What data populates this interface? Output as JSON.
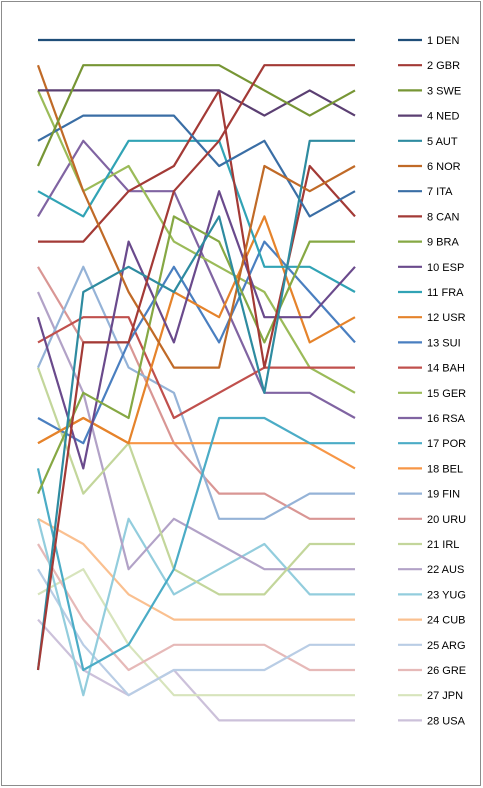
{
  "chart_data": {
    "type": "line",
    "title": "",
    "xlabel": "",
    "ylabel": "",
    "x": [
      1,
      2,
      3,
      4,
      5,
      6,
      7,
      8
    ],
    "ylim": [
      1,
      28
    ],
    "y_inverted": true,
    "grid": false,
    "legend_position": "right",
    "series": [
      {
        "name": "1 DEN",
        "color": "#1f4e79",
        "values": [
          1,
          1,
          1,
          1,
          1,
          1,
          1,
          1
        ]
      },
      {
        "name": "2 GBR",
        "color": "#a33a36",
        "values": [
          26,
          13,
          13,
          7,
          5,
          2,
          2,
          2
        ]
      },
      {
        "name": "3 SWE",
        "color": "#779635",
        "values": [
          6,
          2,
          2,
          2,
          2,
          3,
          4,
          3
        ]
      },
      {
        "name": "4 NED",
        "color": "#5b3f72",
        "values": [
          3,
          3,
          3,
          3,
          3,
          4,
          3,
          4
        ]
      },
      {
        "name": "5 AUT",
        "color": "#2e8ba0",
        "values": [
          26,
          11,
          10,
          11,
          8,
          15,
          5,
          5
        ]
      },
      {
        "name": "6 NOR",
        "color": "#c06a27",
        "values": [
          2,
          7,
          11,
          14,
          14,
          6,
          7,
          6
        ]
      },
      {
        "name": "7 ITA",
        "color": "#3a6ea5",
        "values": [
          5,
          4,
          4,
          4,
          6,
          5,
          8,
          7
        ]
      },
      {
        "name": "8 CAN",
        "color": "#a33a36",
        "values": [
          9,
          9,
          7,
          6,
          3,
          14,
          6,
          8
        ]
      },
      {
        "name": "9 BRA",
        "color": "#86a844",
        "values": [
          19,
          15,
          16,
          8,
          9,
          13,
          9,
          9
        ]
      },
      {
        "name": "10 ESP",
        "color": "#6a4a8c",
        "values": [
          12,
          18,
          9,
          13,
          7,
          12,
          12,
          10
        ]
      },
      {
        "name": "11 FRA",
        "color": "#31a3b5",
        "values": [
          7,
          8,
          5,
          5,
          5,
          10,
          10,
          11
        ]
      },
      {
        "name": "12 USR",
        "color": "#e5832b",
        "values": [
          17,
          16,
          17,
          11,
          12,
          8,
          13,
          12
        ]
      },
      {
        "name": "13 SUI",
        "color": "#4a7fc0",
        "values": [
          16,
          17,
          13,
          10,
          13,
          9,
          11,
          13
        ]
      },
      {
        "name": "14 BAH",
        "color": "#c0504d",
        "values": [
          13,
          12,
          12,
          16,
          15,
          14,
          14,
          14
        ]
      },
      {
        "name": "15 GER",
        "color": "#9bbb59",
        "values": [
          3,
          7,
          6,
          9,
          10,
          11,
          14,
          15
        ]
      },
      {
        "name": "16 RSA",
        "color": "#8064a2",
        "values": [
          8,
          5,
          7,
          7,
          11,
          15,
          15,
          16
        ]
      },
      {
        "name": "17 POR",
        "color": "#4bacc6",
        "values": [
          18,
          26,
          25,
          22,
          16,
          16,
          17,
          17
        ]
      },
      {
        "name": "18 BEL",
        "color": "#f79646",
        "values": [
          17,
          16,
          17,
          17,
          17,
          17,
          17,
          18
        ]
      },
      {
        "name": "19 FIN",
        "color": "#95b3d7",
        "values": [
          14,
          10,
          14,
          15,
          20,
          20,
          19,
          19
        ]
      },
      {
        "name": "20 URU",
        "color": "#d99694",
        "values": [
          10,
          13,
          13,
          17,
          19,
          19,
          20,
          20
        ]
      },
      {
        "name": "21 IRL",
        "color": "#c3d69b",
        "values": [
          14,
          19,
          17,
          22,
          23,
          23,
          21,
          21
        ]
      },
      {
        "name": "22 AUS",
        "color": "#b2a2c7",
        "values": [
          11,
          15,
          22,
          20,
          21,
          22,
          22,
          22
        ]
      },
      {
        "name": "23 YUG",
        "color": "#93cddd",
        "values": [
          20,
          27,
          20,
          23,
          22,
          21,
          23,
          23
        ]
      },
      {
        "name": "24 CUB",
        "color": "#fac090",
        "values": [
          20,
          21,
          23,
          24,
          24,
          24,
          24,
          24
        ]
      },
      {
        "name": "25 ARG",
        "color": "#b9cde5",
        "values": [
          22,
          25,
          27,
          26,
          26,
          26,
          25,
          25
        ]
      },
      {
        "name": "26 GRE",
        "color": "#e6b9b8",
        "values": [
          21,
          24,
          26,
          25,
          25,
          25,
          26,
          26
        ]
      },
      {
        "name": "27 JPN",
        "color": "#d7e4bc",
        "values": [
          23,
          22,
          25,
          27,
          27,
          27,
          27,
          27
        ]
      },
      {
        "name": "28 USA",
        "color": "#ccc1da",
        "values": [
          24,
          26,
          27,
          26,
          28,
          28,
          28,
          28
        ]
      }
    ]
  }
}
